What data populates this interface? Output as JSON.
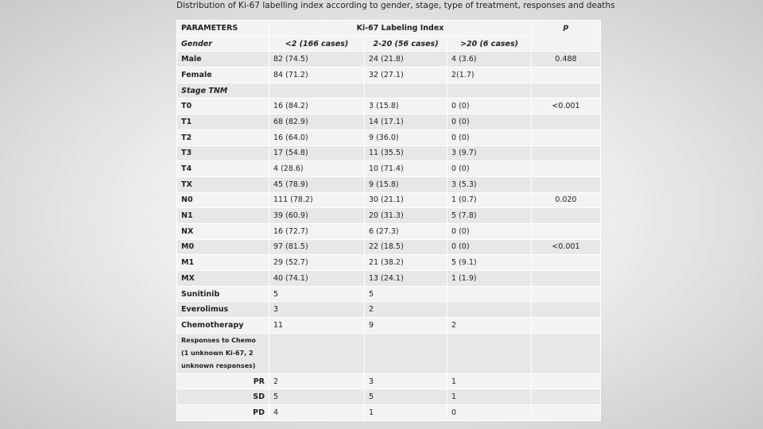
{
  "title": "Distribution of Ki-67 labelling index according to gender, stage, type of treatment, responses and deaths",
  "table": {
    "header": [
      "PARAMETERS",
      "Ki-67 Labeling Index",
      "p"
    ],
    "subheader": [
      "Gender",
      "<2 (166 cases)",
      "2-20 (56 cases)",
      ">20 (6 cases)"
    ],
    "rows": [
      [
        "Male",
        "82 (74.5)",
        "24 (21.8)",
        "4 (3.6)",
        "0.488"
      ],
      [
        "Female",
        "84 (71.2)",
        "32 (27.1)",
        "2(1.7)",
        null
      ],
      [
        "Stage TNM",
        null,
        null,
        null,
        null
      ],
      [
        "T0",
        "16 (84.2)",
        "3 (15.8)",
        "0 (0)",
        "<0.001"
      ],
      [
        "T1",
        "68 (82.9)",
        "14 (17.1)",
        "0 (0)",
        null
      ],
      [
        "T2",
        "16 (64.0)",
        "9 (36.0)",
        "0 (0)",
        null
      ],
      [
        "T3",
        "17 (54.8)",
        "11 (35.5)",
        "3 (9.7)",
        null
      ],
      [
        "T4",
        "4 (28.6)",
        "10 (71.4)",
        "0 (0)",
        null
      ],
      [
        "TX",
        "45 (78.9)",
        "9 (15.8)",
        "3 (5.3)",
        null
      ],
      [
        "N0",
        "111 (78.2)",
        "30 (21.1)",
        "1 (0.7)",
        "0.020"
      ],
      [
        "N1",
        "39 (60.9)",
        "20 (31.3)",
        "5 (7.8)",
        null
      ],
      [
        "NX",
        "16 (72.7)",
        "6 (27.3)",
        "0 (0)",
        null
      ],
      [
        "M0",
        "97 (81.5)",
        "22 (18.5)",
        "0 (0)",
        "<0.001"
      ],
      [
        "M1",
        "29 (52.7)",
        "21 (38.2)",
        "5 (9.1)",
        null
      ],
      [
        "MX",
        "40 (74.1)",
        "13 (24.1)",
        "1 (1.9)",
        null
      ],
      [
        "Sunitinib",
        "5",
        "5",
        null,
        null
      ],
      [
        "Everolimus",
        "3",
        "2",
        null,
        null
      ],
      [
        "Chemotherapy",
        "11",
        "9",
        "2",
        null
      ],
      [
        "Responses to Chemo (1 unknown Ki-67, 2 unknown responses)",
        null,
        null,
        null,
        null
      ],
      [
        "PR",
        "2",
        "3",
        "1",
        null
      ],
      [
        "SD",
        "5",
        "5",
        "1",
        null
      ],
      [
        "PD",
        "4",
        "1",
        "0",
        null
      ]
    ]
  }
}
